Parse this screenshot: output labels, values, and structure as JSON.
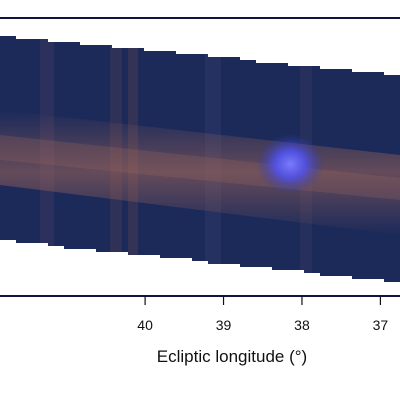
{
  "chart_data": {
    "type": "heatmap",
    "title": "",
    "xlabel": "Ecliptic longitude (°)",
    "ylabel": "",
    "x_reversed": true,
    "xlim": [
      41.85,
      36.75
    ],
    "x_ticks": [
      40,
      39,
      38,
      37
    ],
    "grid": false,
    "legend": "none",
    "background_color": "#1c2a5a",
    "frame_color": "#0e1540",
    "bright_source": {
      "longitude": 38.15,
      "color": "#5a5cff"
    },
    "dust_band": {
      "color": "#a0665a"
    }
  }
}
